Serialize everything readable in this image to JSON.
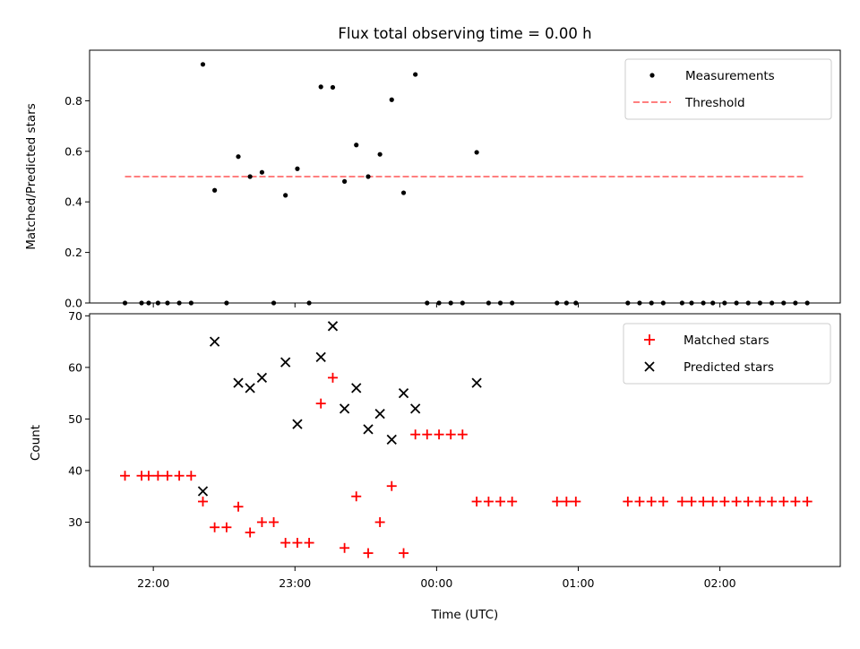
{
  "chart_data": [
    {
      "type": "scatter",
      "title": "Flux total observing time = 0.00 h",
      "ylabel": "Matched/Predicted stars",
      "xlabel": "",
      "ylim": [
        0,
        1.0
      ],
      "xlim_hours": [
        21.55,
        26.85
      ],
      "yticks": [
        0.0,
        0.2,
        0.4,
        0.6,
        0.8
      ],
      "ytick_labels": [
        "0.0",
        "0.2",
        "0.4",
        "0.6",
        "0.8"
      ],
      "legend_position": "top-right",
      "legend": [
        {
          "label": "Measurements",
          "kind": "dot",
          "color": "#000000"
        },
        {
          "label": "Threshold",
          "kind": "dashed-line",
          "color": "#ff7f7f"
        }
      ],
      "threshold": {
        "y": 0.5,
        "x_start": 21.8,
        "x_end": 26.6
      },
      "series": [
        {
          "name": "Measurements",
          "color": "#000000",
          "points": [
            [
              21.8,
              0.0
            ],
            [
              21.917,
              0.0
            ],
            [
              21.967,
              0.0
            ],
            [
              22.033,
              0.0
            ],
            [
              22.1,
              0.0
            ],
            [
              22.183,
              0.0
            ],
            [
              22.267,
              0.0
            ],
            [
              22.35,
              0.944
            ],
            [
              22.433,
              0.446
            ],
            [
              22.517,
              0.0
            ],
            [
              22.6,
              0.579
            ],
            [
              22.683,
              0.5
            ],
            [
              22.767,
              0.517
            ],
            [
              22.85,
              0.0
            ],
            [
              22.933,
              0.426
            ],
            [
              23.017,
              0.531
            ],
            [
              23.1,
              0.0
            ],
            [
              23.183,
              0.855
            ],
            [
              23.267,
              0.853
            ],
            [
              23.35,
              0.481
            ],
            [
              23.433,
              0.625
            ],
            [
              23.517,
              0.5
            ],
            [
              23.6,
              0.588
            ],
            [
              23.683,
              0.804
            ],
            [
              23.767,
              0.436
            ],
            [
              23.85,
              0.904
            ],
            [
              23.933,
              0.0
            ],
            [
              24.017,
              0.0
            ],
            [
              24.1,
              0.0
            ],
            [
              24.183,
              0.0
            ],
            [
              24.283,
              0.596
            ],
            [
              24.367,
              0.0
            ],
            [
              24.45,
              0.0
            ],
            [
              24.533,
              0.0
            ],
            [
              24.85,
              0.0
            ],
            [
              24.917,
              0.0
            ],
            [
              24.983,
              0.0
            ],
            [
              25.35,
              0.0
            ],
            [
              25.433,
              0.0
            ],
            [
              25.517,
              0.0
            ],
            [
              25.6,
              0.0
            ],
            [
              25.733,
              0.0
            ],
            [
              25.8,
              0.0
            ],
            [
              25.883,
              0.0
            ],
            [
              25.95,
              0.0
            ],
            [
              26.033,
              0.0
            ],
            [
              26.117,
              0.0
            ],
            [
              26.2,
              0.0
            ],
            [
              26.283,
              0.0
            ],
            [
              26.367,
              0.0
            ],
            [
              26.45,
              0.0
            ],
            [
              26.533,
              0.0
            ],
            [
              26.617,
              0.0
            ]
          ]
        }
      ]
    },
    {
      "type": "scatter",
      "title": "",
      "ylabel": "Count",
      "xlabel": "Time (UTC)",
      "ylim": [
        21.4,
        70.4
      ],
      "xlim_hours": [
        21.55,
        26.85
      ],
      "yticks": [
        30,
        40,
        50,
        60,
        70
      ],
      "ytick_labels": [
        "30",
        "40",
        "50",
        "60",
        "70"
      ],
      "xticks_hours": [
        22,
        23,
        24,
        25,
        26
      ],
      "xtick_labels": [
        "22:00",
        "23:00",
        "00:00",
        "01:00",
        "02:00"
      ],
      "legend_position": "top-right",
      "legend": [
        {
          "label": "Matched stars",
          "kind": "plus",
          "color": "#ff0000"
        },
        {
          "label": "Predicted stars",
          "kind": "x",
          "color": "#000000"
        }
      ],
      "series": [
        {
          "name": "Matched stars",
          "marker": "plus",
          "color": "#ff0000",
          "points": [
            [
              21.8,
              39
            ],
            [
              21.917,
              39
            ],
            [
              21.967,
              39
            ],
            [
              22.033,
              39
            ],
            [
              22.1,
              39
            ],
            [
              22.183,
              39
            ],
            [
              22.267,
              39
            ],
            [
              22.35,
              34
            ],
            [
              22.433,
              29
            ],
            [
              22.517,
              29
            ],
            [
              22.6,
              33
            ],
            [
              22.683,
              28
            ],
            [
              22.767,
              30
            ],
            [
              22.85,
              30
            ],
            [
              22.933,
              26
            ],
            [
              23.017,
              26
            ],
            [
              23.1,
              26
            ],
            [
              23.183,
              53
            ],
            [
              23.267,
              58
            ],
            [
              23.35,
              25
            ],
            [
              23.433,
              35
            ],
            [
              23.517,
              24
            ],
            [
              23.6,
              30
            ],
            [
              23.683,
              37
            ],
            [
              23.767,
              24
            ],
            [
              23.85,
              47
            ],
            [
              23.933,
              47
            ],
            [
              24.017,
              47
            ],
            [
              24.1,
              47
            ],
            [
              24.183,
              47
            ],
            [
              24.283,
              34
            ],
            [
              24.367,
              34
            ],
            [
              24.45,
              34
            ],
            [
              24.533,
              34
            ],
            [
              24.85,
              34
            ],
            [
              24.917,
              34
            ],
            [
              24.983,
              34
            ],
            [
              25.35,
              34
            ],
            [
              25.433,
              34
            ],
            [
              25.517,
              34
            ],
            [
              25.6,
              34
            ],
            [
              25.733,
              34
            ],
            [
              25.8,
              34
            ],
            [
              25.883,
              34
            ],
            [
              25.95,
              34
            ],
            [
              26.033,
              34
            ],
            [
              26.117,
              34
            ],
            [
              26.2,
              34
            ],
            [
              26.283,
              34
            ],
            [
              26.367,
              34
            ],
            [
              26.45,
              34
            ],
            [
              26.533,
              34
            ],
            [
              26.617,
              34
            ]
          ]
        },
        {
          "name": "Predicted stars",
          "marker": "x",
          "color": "#000000",
          "points": [
            [
              22.35,
              36
            ],
            [
              22.433,
              65
            ],
            [
              22.6,
              57
            ],
            [
              22.683,
              56
            ],
            [
              22.767,
              58
            ],
            [
              22.933,
              61
            ],
            [
              23.017,
              49
            ],
            [
              23.183,
              62
            ],
            [
              23.267,
              68
            ],
            [
              23.35,
              52
            ],
            [
              23.433,
              56
            ],
            [
              23.517,
              48
            ],
            [
              23.6,
              51
            ],
            [
              23.683,
              46
            ],
            [
              23.767,
              55
            ],
            [
              23.85,
              52
            ],
            [
              24.283,
              57
            ]
          ]
        }
      ]
    }
  ]
}
